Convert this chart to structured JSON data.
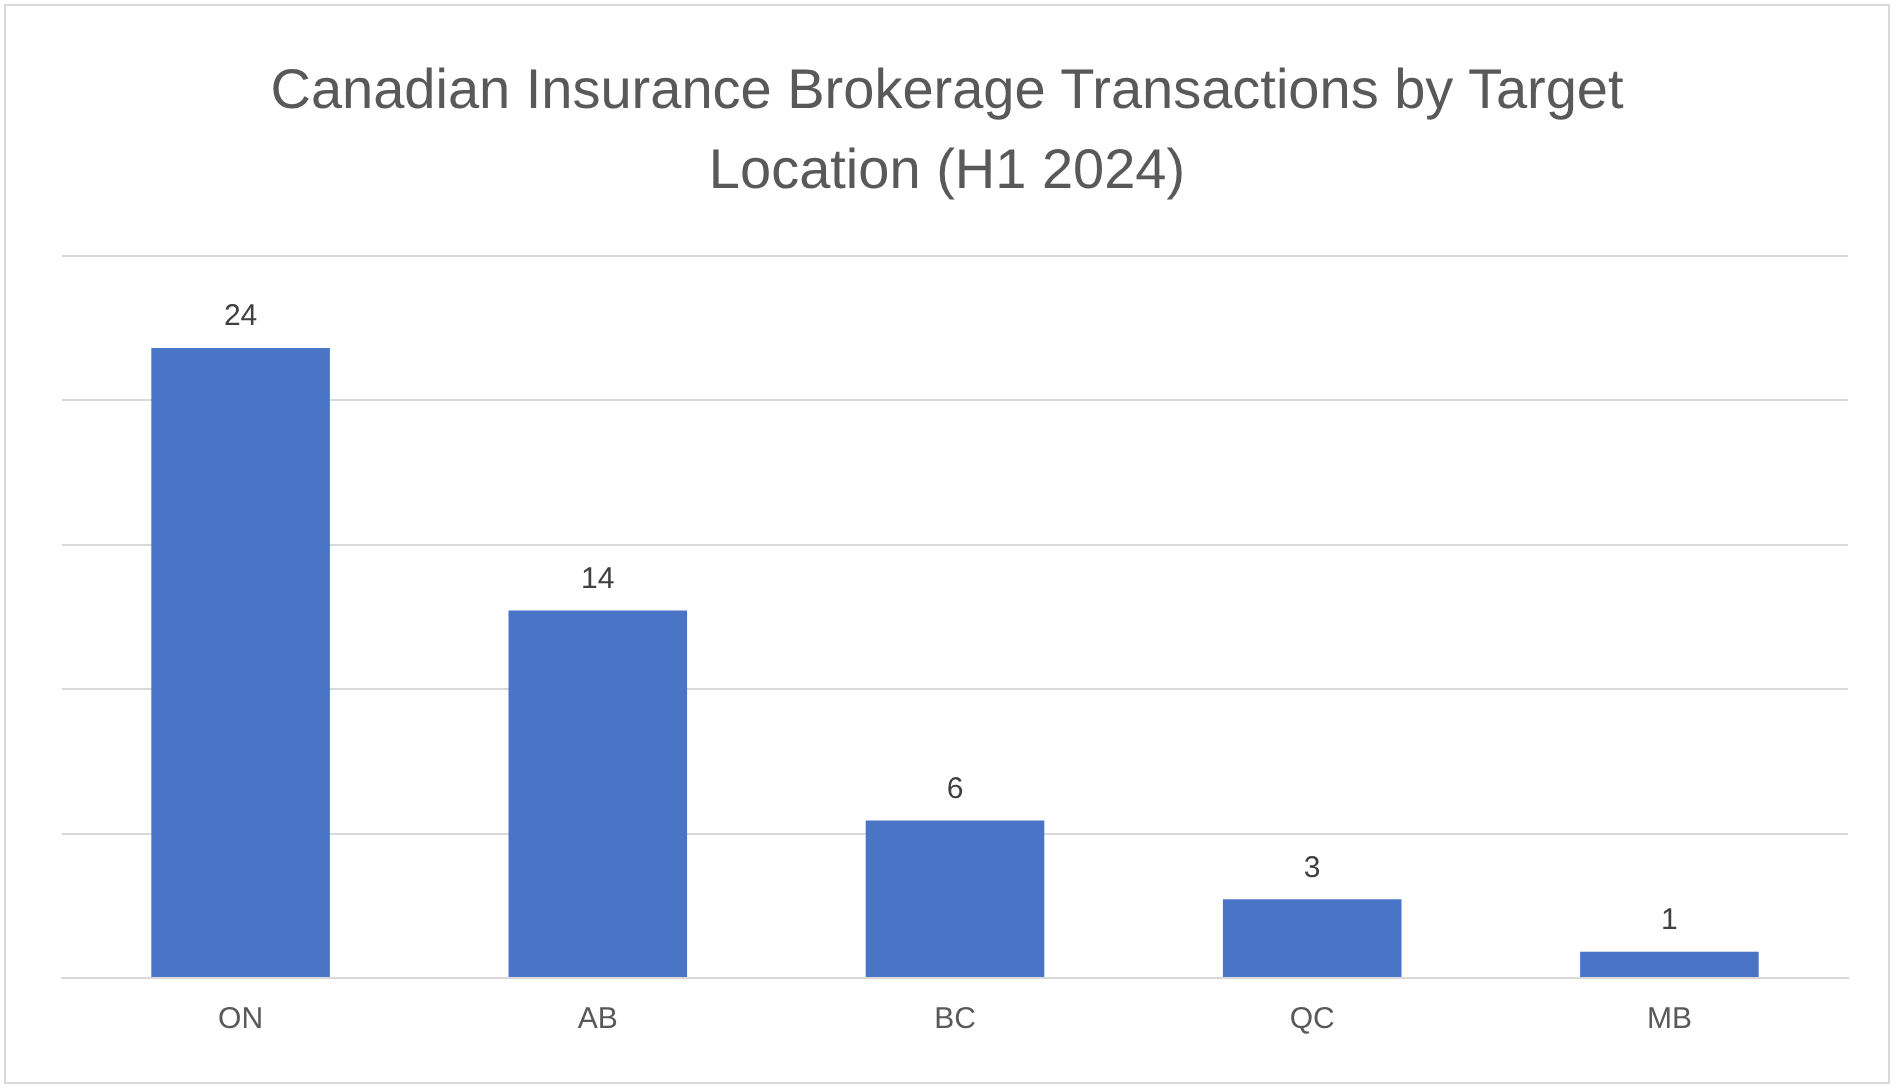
{
  "chart_data": {
    "type": "bar",
    "title": "Canadian Insurance Brokerage Transactions by Target Location (H1 2024)",
    "categories": [
      "ON",
      "AB",
      "BC",
      "QC",
      "MB"
    ],
    "values": [
      24,
      14,
      6,
      3,
      1
    ],
    "color": "#4a75c7",
    "ylim": [
      0,
      27.5
    ],
    "yticks": [
      {
        "value": 0,
        "label": null
      },
      {
        "value": 5.5,
        "label": null
      },
      {
        "value": 11,
        "label": null
      },
      {
        "value": 16.5,
        "label": null
      },
      {
        "value": 22,
        "label": null
      },
      {
        "value": 27.5,
        "label": null
      }
    ],
    "grid": "y",
    "tick_labels": "x",
    "data_labels": true
  }
}
